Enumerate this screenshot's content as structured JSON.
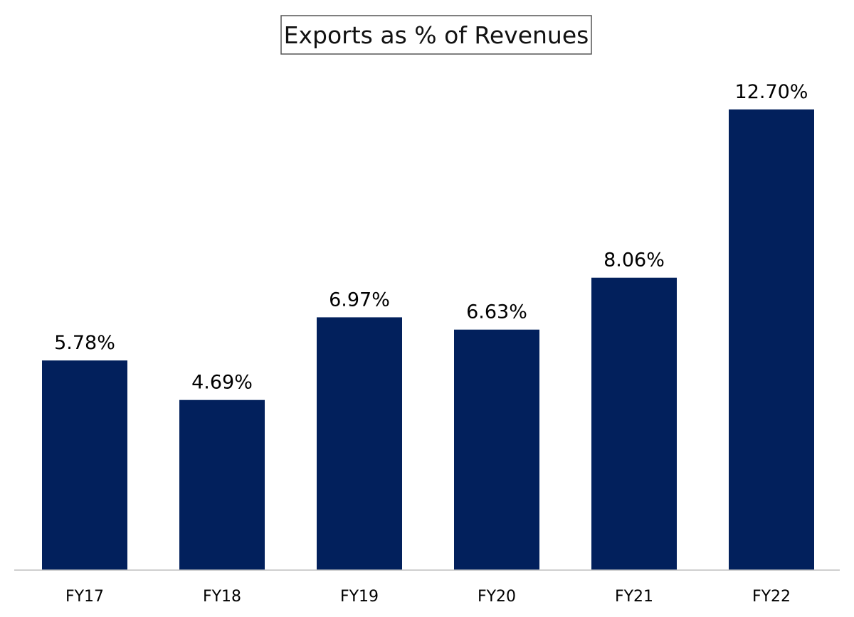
{
  "chart_data": {
    "type": "bar",
    "title": "Exports as % of Revenues",
    "categories": [
      "FY17",
      "FY18",
      "FY19",
      "FY20",
      "FY21",
      "FY22"
    ],
    "values": [
      5.78,
      4.69,
      6.97,
      6.63,
      8.06,
      12.7
    ],
    "value_labels": [
      "5.78%",
      "4.69%",
      "6.97%",
      "6.63%",
      "8.06%",
      "12.70%"
    ],
    "ylim": [
      0,
      12.7
    ],
    "grid": false,
    "legend": "none",
    "colors": {
      "bar": "#02205c",
      "axis_line": "#bfbfbf",
      "title_border": "#555555"
    }
  }
}
